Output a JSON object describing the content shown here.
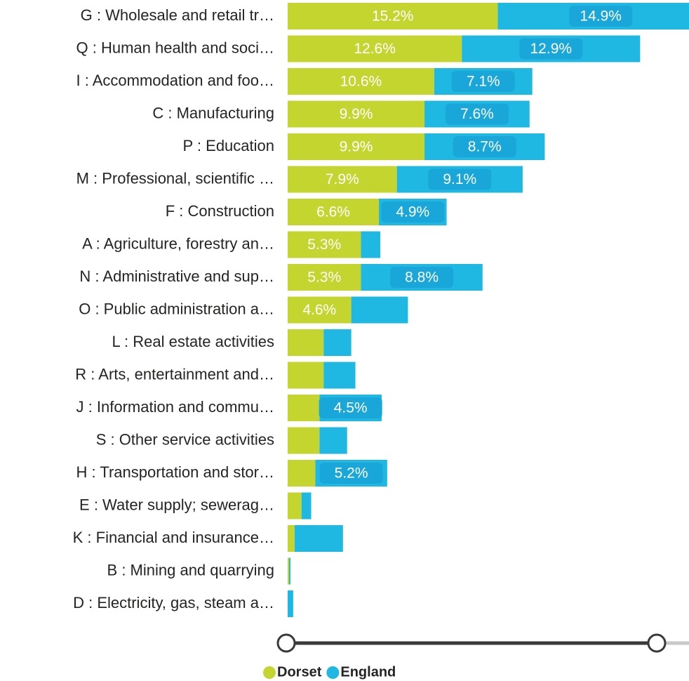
{
  "chart_data": {
    "type": "stacked-bar-horizontal",
    "categories": [
      "G : Wholesale and retail tr…",
      "Q : Human health and soci…",
      "I : Accommodation and foo…",
      "C : Manufacturing",
      "P : Education",
      "M : Professional, scientific …",
      "F : Construction",
      "A : Agriculture, forestry an…",
      "N : Administrative and sup…",
      "O : Public administration a…",
      "L : Real estate activities",
      "R : Arts, entertainment and…",
      "J : Information and commu…",
      "S : Other service activities",
      "H : Transportation and stor…",
      "E : Water supply; sewerag…",
      "K : Financial and insurance…",
      "B : Mining and quarrying",
      "D : Electricity, gas, steam a…"
    ],
    "series": [
      {
        "name": "Dorset",
        "color": "#c5d52f",
        "values": [
          15.2,
          12.6,
          10.6,
          9.9,
          9.9,
          7.9,
          6.6,
          5.3,
          5.3,
          4.6,
          2.6,
          2.6,
          2.3,
          2.3,
          2.0,
          1.0,
          0.5,
          0.1,
          0.0
        ],
        "value_labels": [
          "15.2%",
          "12.6%",
          "10.6%",
          "9.9%",
          "9.9%",
          "7.9%",
          "6.6%",
          "5.3%",
          "5.3%",
          "4.6%",
          null,
          null,
          null,
          null,
          null,
          null,
          null,
          null,
          null
        ]
      },
      {
        "name": "England",
        "color": "#1fb8e3",
        "values": [
          14.9,
          12.9,
          7.1,
          7.6,
          8.7,
          9.1,
          4.9,
          1.4,
          8.8,
          4.1,
          2.0,
          2.3,
          4.5,
          2.0,
          5.2,
          0.7,
          3.5,
          0.1,
          0.4
        ],
        "value_labels": [
          "14.9%",
          "12.9%",
          "7.1%",
          "7.6%",
          "8.7%",
          "9.1%",
          "4.9%",
          null,
          "8.8%",
          null,
          null,
          null,
          "4.5%",
          null,
          "5.2%",
          null,
          null,
          null,
          null
        ]
      }
    ]
  }
}
